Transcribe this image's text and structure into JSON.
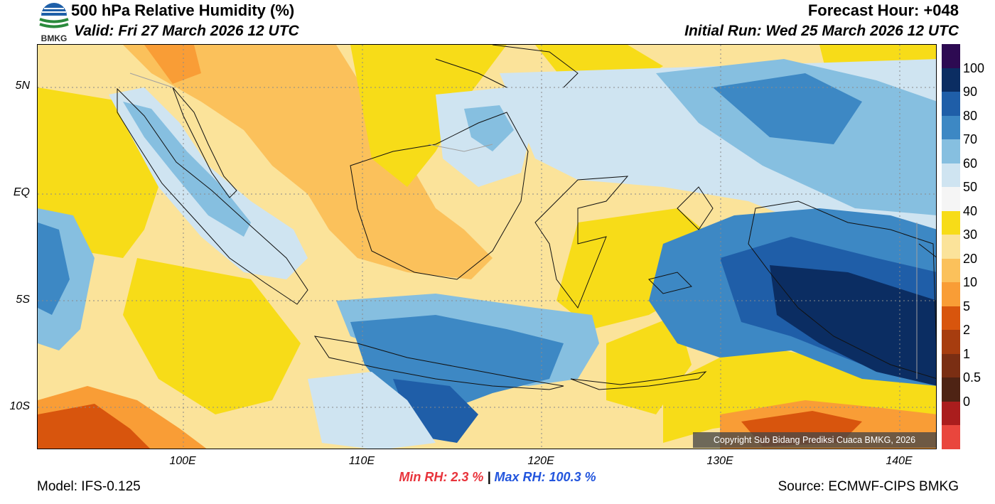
{
  "header": {
    "title": "500 hPa Relative Humidity (%)",
    "valid": "Valid: Fri 27 March 2026 12 UTC",
    "forecast_hour": "Forecast Hour: +048",
    "initial_run": "Initial Run: Wed 25 March 2026 12 UTC",
    "logo_text": "BMKG"
  },
  "map": {
    "lat_labels": [
      "5N",
      "EQ",
      "5S",
      "10S"
    ],
    "lon_labels": [
      "100E",
      "110E",
      "120E",
      "130E",
      "140E"
    ],
    "copyright": "Copyright Sub Bidang Prediksi Cuaca BMKG, 2026"
  },
  "legend": {
    "labels": [
      "100",
      "90",
      "80",
      "70",
      "60",
      "50",
      "40",
      "30",
      "20",
      "10",
      "5",
      "2",
      "1",
      "0.5",
      "0"
    ],
    "colors": [
      "#2d0a52",
      "#0b2d62",
      "#1f5ea8",
      "#3d88c4",
      "#86bfe0",
      "#cfe4f1",
      "#f5f5f5",
      "#f7dc18",
      "#fbe39a",
      "#fbc15b",
      "#f99d36",
      "#d8550d",
      "#a73d0f",
      "#7a2e13",
      "#4e2314",
      "#aa1d1d",
      "#e9463d"
    ]
  },
  "stats": {
    "min_label": "Min RH:",
    "min_value": "2.3 %",
    "separator": "|",
    "max_label": "Max RH:",
    "max_value": "100.3 %"
  },
  "footer": {
    "model": "Model: IFS-0.125",
    "source": "Source: ECMWF-CIPS BMKG"
  }
}
